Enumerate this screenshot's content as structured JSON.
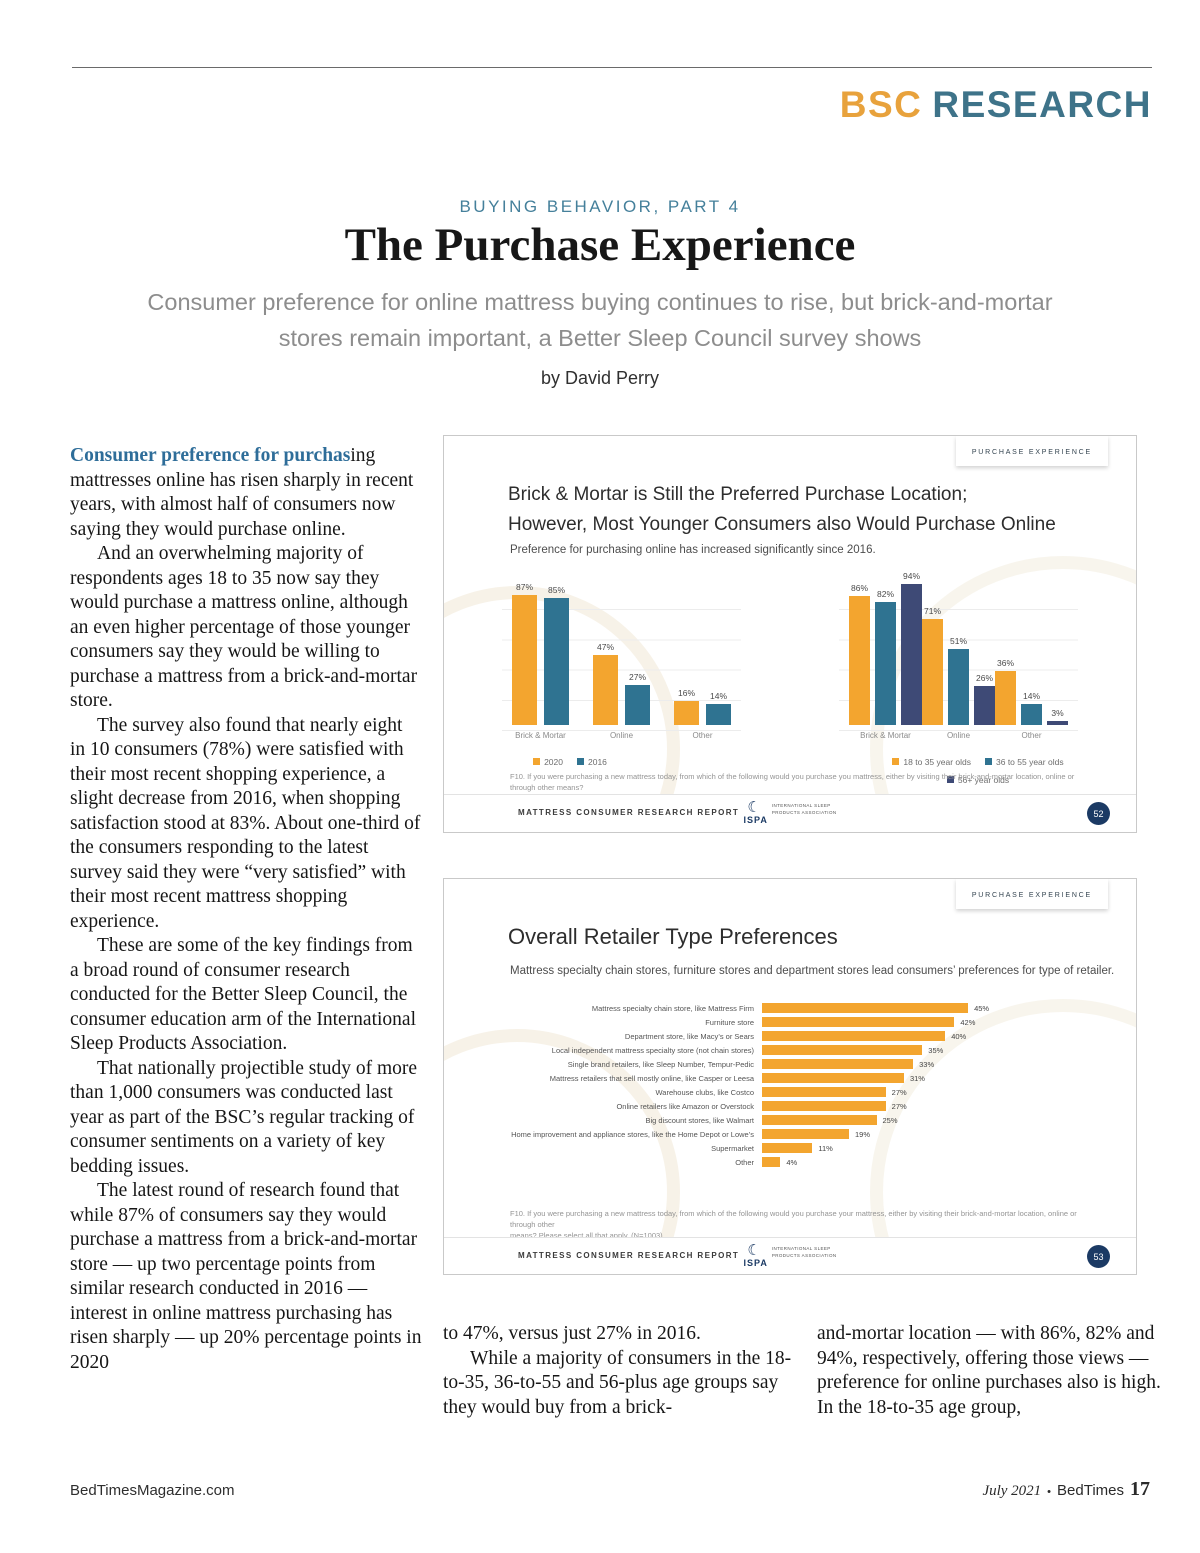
{
  "header": {
    "brand_bsc": "BSC",
    "brand_research": "RESEARCH",
    "kicker": "BUYING BEHAVIOR, PART 4",
    "title": "The Purchase Experience",
    "deck": "Consumer preference for online mattress buying continues to rise, but brick-and-mortar\nstores remain important, a Better Sleep Council survey shows",
    "byline": "by David Perry"
  },
  "article": {
    "lead_in": "Consumer preference for purchas",
    "lead_rest": "ing mattresses online has risen sharply in recent years, with almost half of consumers now saying they would purchase online.",
    "paragraphs_left": [
      "And an overwhelming majority of respondents ages 18 to 35 now say they would purchase a mattress online, although an even higher percentage of those younger consumers say they would be willing to purchase a mattress from a brick-and-mortar store.",
      "The survey also found that nearly eight in 10 consumers (78%) were satisfied with their most recent shopping experience, a slight decrease from 2016, when shopping satisfaction stood at 83%. About one-third of the consumers responding to the latest survey said they were “very satisfied” with their most recent mattress shopping experience.",
      "These are some of the key findings from a broad round of consumer research conducted for the Better Sleep Council, the consumer education arm of the International Sleep Products Association.",
      "That nationally projectible study of more than 1,000 consumers was conducted last year as part of the BSC’s regular tracking of consumer sentiments on a variety of key bedding issues.",
      "The latest round of research found that while 87% of consumers say they would purchase a mattress from a brick-and-mortar store — up two percentage points from similar research conducted in 2016 — interest in online mattress purchasing has risen sharply — up 20% percentage points in 2020"
    ],
    "paragraphs_mid": [
      "to 47%, versus just 27% in 2016.",
      "While a majority of consumers in the 18-to-35, 36-to-55 and 56-plus age groups say they would buy from a brick-"
    ],
    "paragraphs_right": [
      "and-mortar location — with 86%, 82% and 94%, respectively, offering those views — preference for online purchases also is high. In the 18-to-35 age group,"
    ]
  },
  "ispa": {
    "name": "ISPA",
    "line1": "INTERNATIONAL SLEEP",
    "line2": "PRODUCTS ASSOCIATION"
  },
  "colors": {
    "orange": "#F3A52F",
    "teal": "#2F7391",
    "navy": "#3E4A76",
    "badge_navy": "#1B3A64",
    "brand_orange": "#E8A23C",
    "brand_teal": "#3E7389"
  },
  "chart_data": [
    {
      "type": "bar",
      "variant": "grouped vertical, two panels",
      "tab_label": "PURCHASE EXPERIENCE",
      "title": "Brick & Mortar is Still the Preferred Purchase Location;\nHowever, Most Younger Consumers also Would Purchase Online",
      "subtitle": "Preference for purchasing online has increased significantly since 2016.",
      "ylim": [
        0,
        100
      ],
      "grid": "horizontal lines every 20%",
      "panels": [
        {
          "categories": [
            "Brick & Mortar",
            "Online",
            "Other"
          ],
          "series": [
            {
              "name": "2020",
              "color": "#F3A52F",
              "values": [
                87,
                47,
                16
              ]
            },
            {
              "name": "2016",
              "color": "#2F7391",
              "values": [
                85,
                27,
                14
              ]
            }
          ]
        },
        {
          "categories": [
            "Brick & Mortar",
            "Online",
            "Other"
          ],
          "series": [
            {
              "name": "18 to 35 year olds",
              "color": "#F3A52F",
              "values": [
                86,
                71,
                36
              ]
            },
            {
              "name": "36 to 55 year olds",
              "color": "#2F7391",
              "values": [
                82,
                51,
                14
              ]
            },
            {
              "name": "56+ year olds",
              "color": "#3E4A76",
              "values": [
                94,
                26,
                3
              ]
            }
          ]
        }
      ],
      "footnote": "F10. If you were purchasing a new mattress today, from which of the following would you purchase you mattress, either by visiting their brick-and-mortar location, online or through other means?\nPlease select all that apply. (N=1003)",
      "report_label": "MATTRESS CONSUMER RESEARCH REPORT",
      "page_badge": "52"
    },
    {
      "type": "bar",
      "variant": "horizontal",
      "tab_label": "PURCHASE EXPERIENCE",
      "title": "Overall Retailer Type Preferences",
      "subtitle": "Mattress specialty chain stores, furniture stores and department stores lead consumers’ preferences for type of retailer.",
      "bar_color": "#F3A52F",
      "xlim": [
        0,
        50
      ],
      "categories": [
        "Mattress specialty chain store, like Mattress Firm",
        "Furniture store",
        "Department store, like Macy’s or Sears",
        "Local independent mattress specialty store (not chain stores)",
        "Single brand retailers, like Sleep Number, Tempur-Pedic",
        "Mattress retailers that sell mostly online, like Casper or Leesa",
        "Warehouse clubs, like Costco",
        "Online retailers like Amazon or Overstock",
        "Big discount stores, like Walmart",
        "Home improvement and appliance stores, like the Home Depot or Lowe’s",
        "Supermarket",
        "Other"
      ],
      "values": [
        45,
        42,
        40,
        35,
        33,
        31,
        27,
        27,
        25,
        19,
        11,
        4
      ],
      "footnote": "F10. If you were purchasing a new mattress today, from which of the following would you purchase your mattress, either by visiting their brick-and-mortar location, online or through other\nmeans? Please select all that apply. (N=1003)",
      "report_label": "MATTRESS CONSUMER RESEARCH REPORT",
      "page_badge": "53"
    }
  ],
  "footer": {
    "website": "BedTimesMagazine.com",
    "issue": "July 2021",
    "separator": "•",
    "magazine": "BedTimes",
    "page_number": "17"
  }
}
